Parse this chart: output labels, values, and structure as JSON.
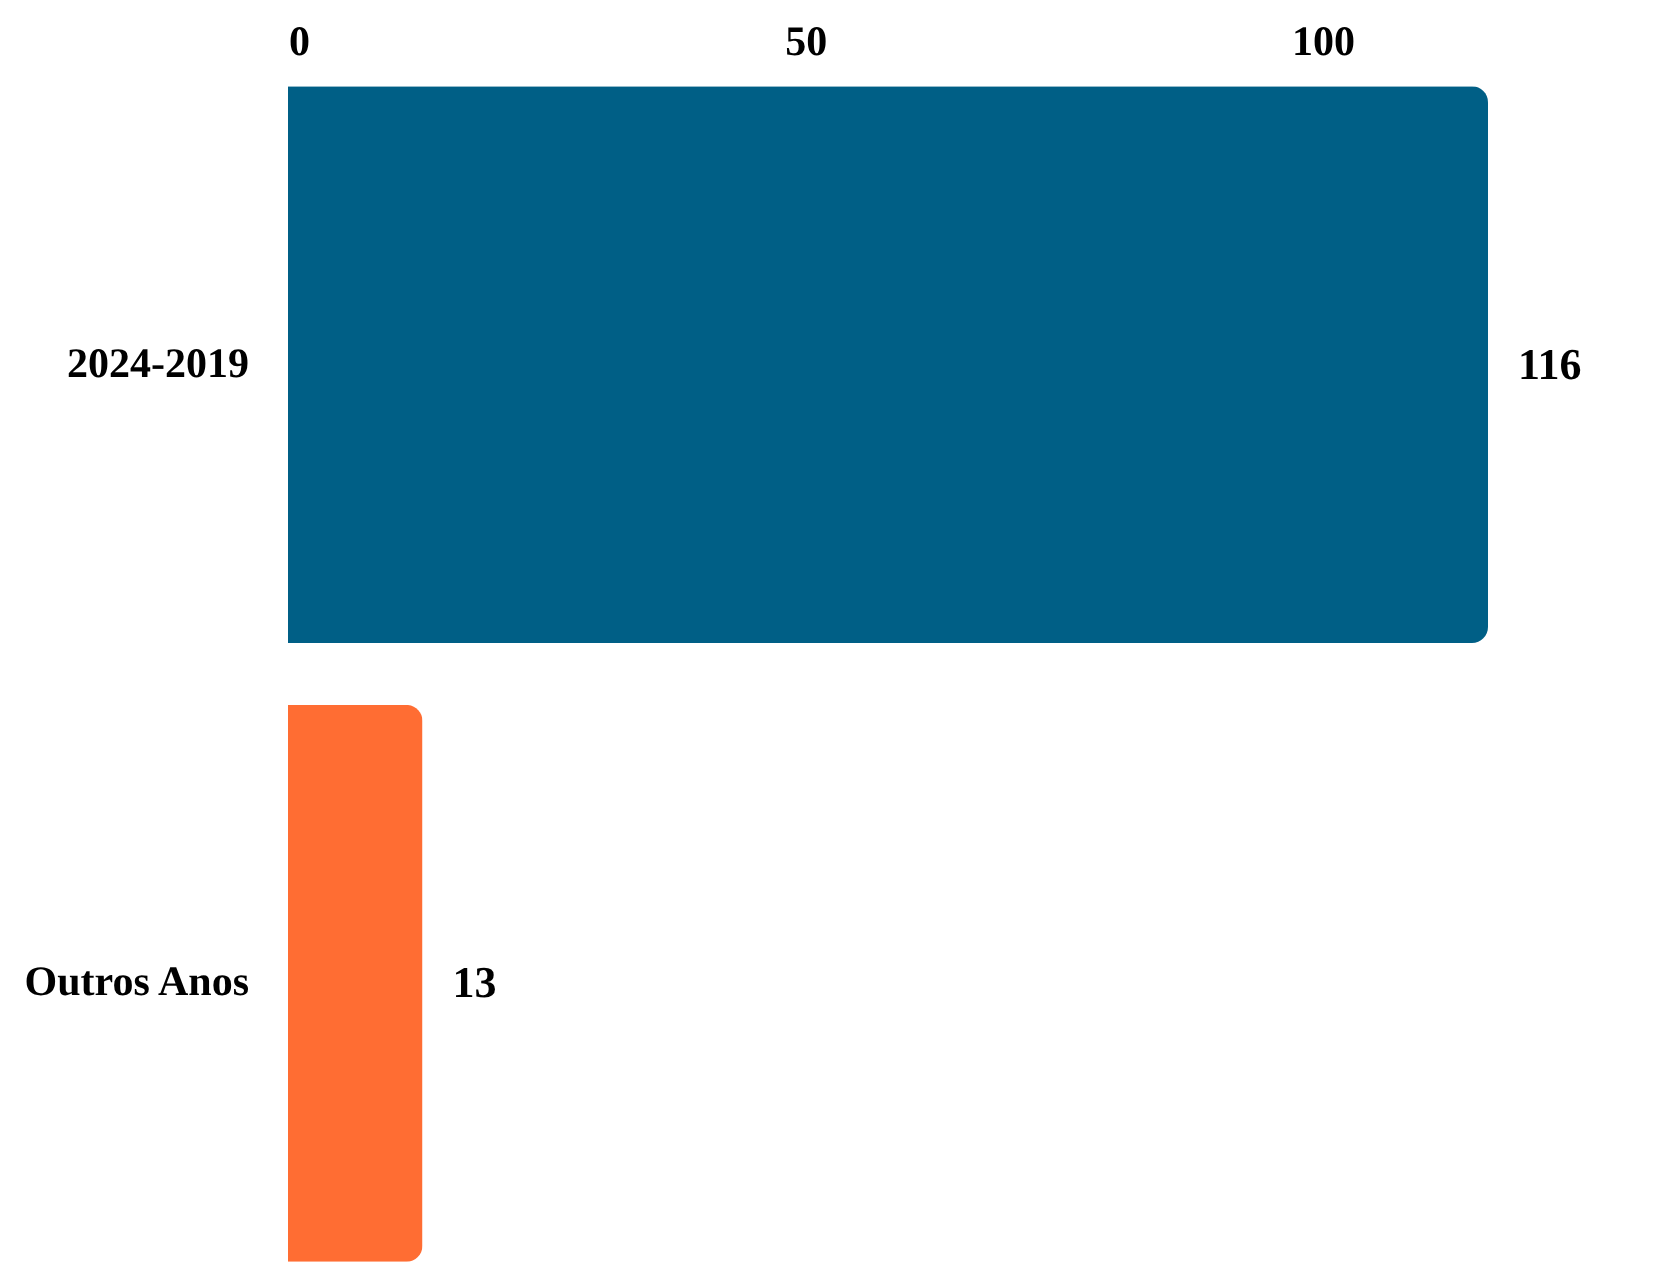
{
  "chart_data": {
    "type": "bar",
    "orientation": "horizontal",
    "categories": [
      "2024-2019",
      "Outros Anos"
    ],
    "values": [
      116,
      13
    ],
    "colors": [
      "#005f86",
      "#ff6d33"
    ],
    "xlim": [
      0,
      116
    ],
    "xticks": [
      0,
      50,
      100
    ],
    "data_labels": true
  }
}
